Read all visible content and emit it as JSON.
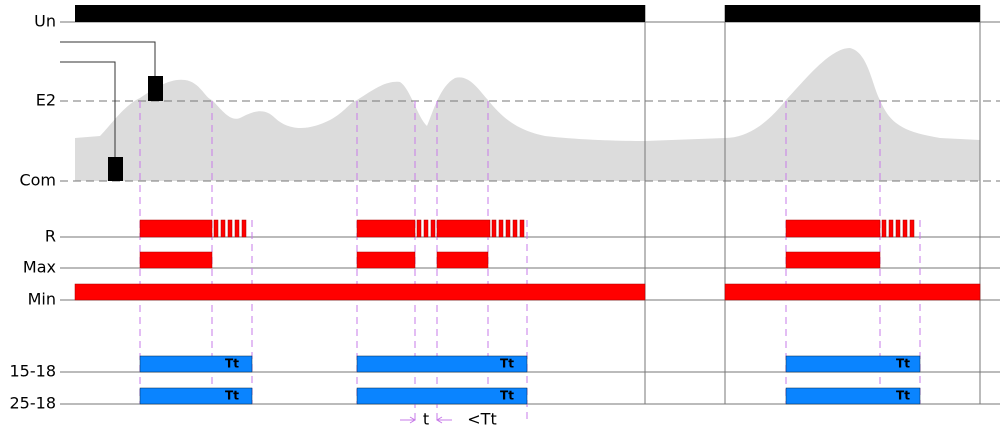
{
  "rows": {
    "un": "Un",
    "e2": "E2",
    "com": "Com",
    "r": "R",
    "max": "Max",
    "min": "Min",
    "out1": "15-18",
    "out2": "25-18"
  },
  "timer_labels": [
    "Tt",
    "Tt",
    "Tt",
    "Tt",
    "Tt",
    "Tt"
  ],
  "annotations": {
    "t": "t",
    "lt": "<Tt"
  }
}
